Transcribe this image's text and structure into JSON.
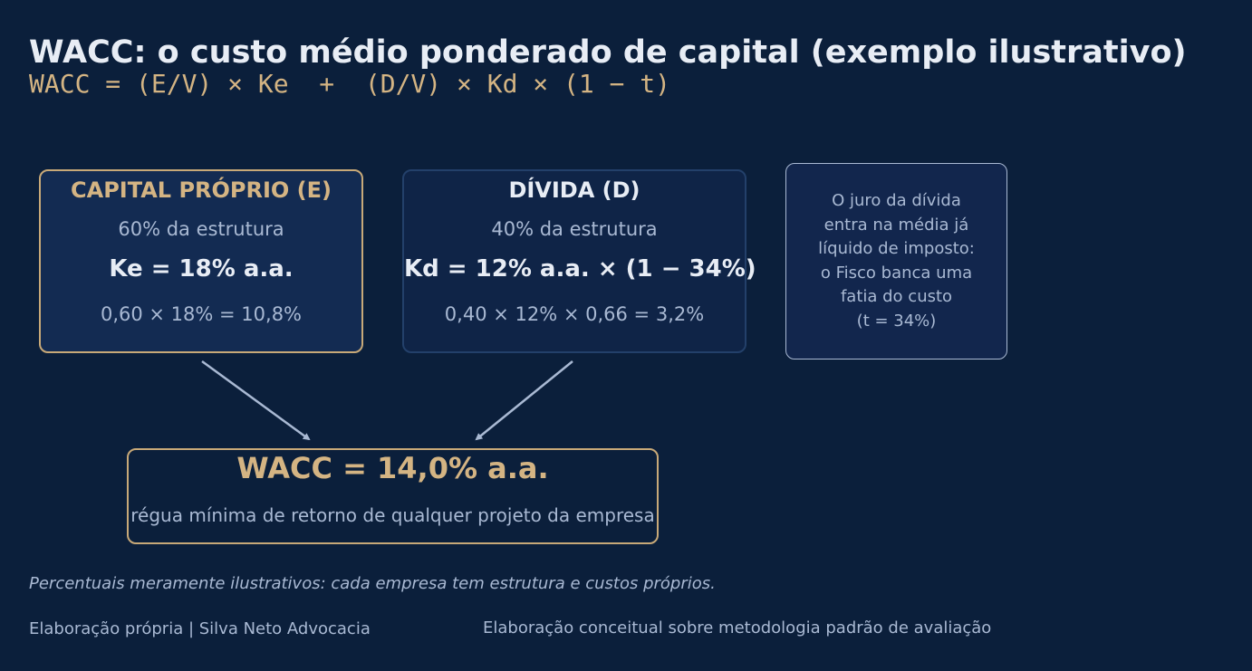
{
  "title": "WACC: o custo médio ponderado de capital (exemplo ilustrativo)",
  "formula": "WACC = (E/V) × Ke  +  (D/V) × Kd × (1 − t)",
  "equity": {
    "heading": "CAPITAL PRÓPRIO (E)",
    "share": "60% da estrutura",
    "rate": "Ke = 18% a.a.",
    "calc": "0,60 × 18% = 10,8%"
  },
  "debt": {
    "heading": "DÍVIDA (D)",
    "share": "40% da estrutura",
    "rate": "Kd = 12% a.a. × (1 − 34%)",
    "calc": "0,40 × 12% × 0,66 = 3,2%"
  },
  "note": {
    "lines": [
      "O juro da dívida",
      "entra na média já",
      "líquido de imposto:",
      "o Fisco banca uma",
      "fatia do custo",
      "(t = 34%)"
    ]
  },
  "result": {
    "value": "WACC = 14,0% a.a.",
    "caption": "régua mínima de retorno de qualquer projeto da empresa"
  },
  "footer": {
    "disclaimer": "Percentuais meramente ilustrativos: cada empresa tem estrutura e custos próprios.",
    "credit": "Elaboração própria | Silva Neto Advocacia",
    "source": "Elaboração conceitual sobre metodologia padrão de avaliação"
  },
  "colors": {
    "background": "#0b1f3b",
    "gold": "#d4b483",
    "text": "#e8edf5",
    "muted": "#a9b9d3",
    "arrow": "#a9b9d3"
  }
}
